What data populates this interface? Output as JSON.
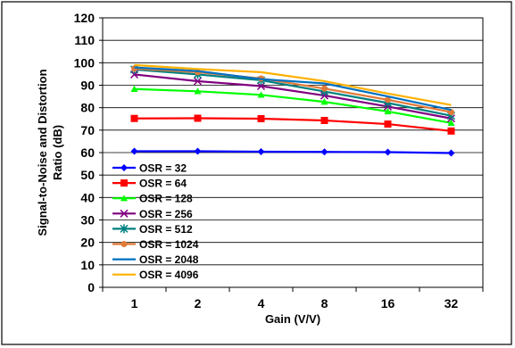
{
  "chart_data": {
    "type": "line",
    "title": "",
    "xlabel": "Gain (V/V)",
    "ylabel": "Signal-to-Noise and Distortion Ratio (dB)",
    "ylabel_lines": [
      "Signal-to-Noise and Distortion",
      "Ratio (dB)"
    ],
    "categories": [
      "1",
      "2",
      "4",
      "8",
      "16",
      "32"
    ],
    "ylim": [
      0,
      120
    ],
    "ytick_step": 10,
    "yticks": [
      "0",
      "10",
      "20",
      "30",
      "40",
      "50",
      "60",
      "70",
      "80",
      "90",
      "100",
      "110",
      "120"
    ],
    "grid": "horizontal",
    "legend_position": "lower-left",
    "series": [
      {
        "name": "OSR = 32",
        "color": "#0000ff",
        "marker": "diamond",
        "values": [
          60.6,
          60.6,
          60.4,
          60.3,
          60.2,
          59.8
        ]
      },
      {
        "name": "OSR = 64",
        "color": "#ff0000",
        "marker": "square",
        "values": [
          75.2,
          75.3,
          75.1,
          74.3,
          72.7,
          69.6
        ]
      },
      {
        "name": "OSR = 128",
        "color": "#00ff00",
        "marker": "triangle",
        "values": [
          88.3,
          87.3,
          85.7,
          82.6,
          78.3,
          73.2
        ]
      },
      {
        "name": "OSR = 256",
        "color": "#800080",
        "marker": "x",
        "values": [
          94.8,
          91.8,
          89.6,
          85.4,
          80.5,
          75.2
        ]
      },
      {
        "name": "OSR = 512",
        "color": "#008080",
        "marker": "star",
        "values": [
          97.0,
          94.8,
          92.2,
          87.2,
          82.1,
          76.4
        ]
      },
      {
        "name": "OSR = 1024",
        "color": "#e07b39",
        "marker": "circle",
        "values": [
          97.4,
          95.8,
          93.0,
          88.5,
          83.5,
          78.0
        ]
      },
      {
        "name": "OSR = 2048",
        "color": "#0070c0",
        "marker": "none",
        "values": [
          97.9,
          96.3,
          92.7,
          90.8,
          85.0,
          79.0
        ]
      },
      {
        "name": "OSR = 4096",
        "color": "#ffb000",
        "marker": "none",
        "values": [
          99.0,
          97.2,
          95.8,
          91.8,
          86.3,
          81.2
        ]
      }
    ]
  }
}
